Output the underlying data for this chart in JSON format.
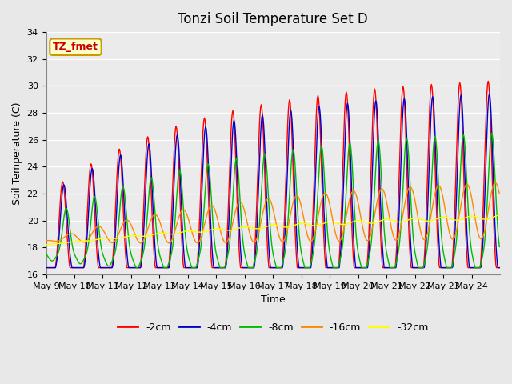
{
  "title": "Tonzi Soil Temperature Set D",
  "xlabel": "Time",
  "ylabel": "Soil Temperature (C)",
  "ylim": [
    16,
    34
  ],
  "y_ticks": [
    16,
    18,
    20,
    22,
    24,
    26,
    28,
    30,
    32,
    34
  ],
  "x_tick_labels": [
    "May 9",
    "May 10",
    "May 11",
    "May 12",
    "May 13",
    "May 14",
    "May 15",
    "May 16",
    "May 17",
    "May 18",
    "May 19",
    "May 20",
    "May 21",
    "May 22",
    "May 23",
    "May 24"
  ],
  "series_colors": [
    "#ff0000",
    "#0000cc",
    "#00bb00",
    "#ff8800",
    "#ffff00"
  ],
  "series_labels": [
    "-2cm",
    "-4cm",
    "-8cm",
    "-16cm",
    "-32cm"
  ],
  "annotation_text": "TZ_fmet",
  "annotation_color": "#cc0000",
  "annotation_bg": "#ffffcc",
  "annotation_border": "#cc9900",
  "background_color": "#e8e8e8",
  "plot_bg": "#ebebeb",
  "grid_color": "#ffffff",
  "title_fontsize": 12,
  "label_fontsize": 9,
  "tick_fontsize": 8
}
